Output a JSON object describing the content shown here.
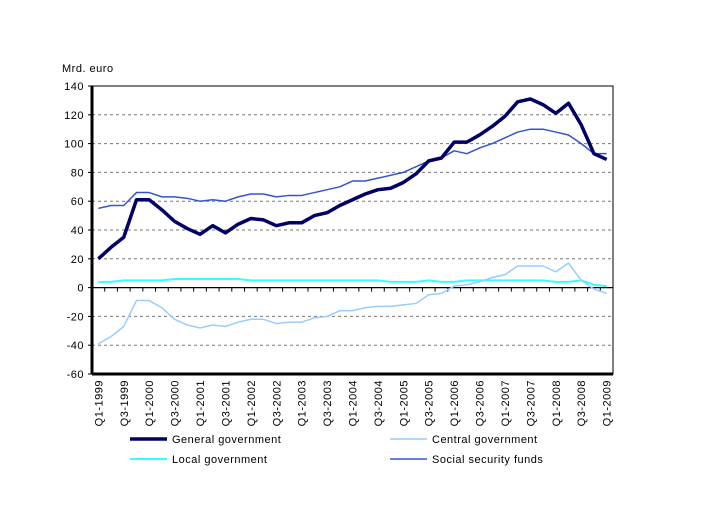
{
  "chart_data": {
    "type": "line",
    "ylabel": "Mrd. euro",
    "ylim": [
      -60,
      140
    ],
    "yticks": [
      -60,
      -40,
      -20,
      0,
      20,
      40,
      60,
      80,
      100,
      120,
      140
    ],
    "grid": true,
    "legend_position": "bottom",
    "x": [
      "Q1-1999",
      "Q2-1999",
      "Q3-1999",
      "Q4-1999",
      "Q1-2000",
      "Q2-2000",
      "Q3-2000",
      "Q4-2000",
      "Q1-2001",
      "Q2-2001",
      "Q3-2001",
      "Q4-2001",
      "Q1-2002",
      "Q2-2002",
      "Q3-2002",
      "Q4-2002",
      "Q1-2003",
      "Q2-2003",
      "Q3-2003",
      "Q4-2003",
      "Q1-2004",
      "Q2-2004",
      "Q3-2004",
      "Q4-2004",
      "Q1-2005",
      "Q2-2005",
      "Q3-2005",
      "Q4-2005",
      "Q1-2006",
      "Q2-2006",
      "Q3-2006",
      "Q4-2006",
      "Q1-2007",
      "Q2-2007",
      "Q3-2007",
      "Q4-2007",
      "Q1-2008",
      "Q2-2008",
      "Q3-2008",
      "Q4-2008",
      "Q1-2009"
    ],
    "xtick_labels": [
      "Q1-1999",
      "Q3-1999",
      "Q1-2000",
      "Q3-2000",
      "Q1-2001",
      "Q3-2001",
      "Q1-2002",
      "Q3-2002",
      "Q1-2003",
      "Q3-2003",
      "Q1-2004",
      "Q3-2004",
      "Q1-2005",
      "Q3-2005",
      "Q1-2006",
      "Q3-2006",
      "Q1-2007",
      "Q3-2007",
      "Q1-2008",
      "Q3-2008",
      "Q1-2009"
    ],
    "series": [
      {
        "name": "General government",
        "color": "#000066",
        "values": [
          20,
          28,
          35,
          61,
          61,
          54,
          46,
          41,
          37,
          43,
          38,
          44,
          48,
          47,
          43,
          45,
          45,
          50,
          52,
          57,
          61,
          65,
          68,
          69,
          73,
          79,
          88,
          90,
          101,
          101,
          106,
          112,
          119,
          129,
          131,
          127,
          121,
          128,
          113,
          93,
          89
        ]
      },
      {
        "name": "Central government",
        "color": "#99ccff",
        "values": [
          -39,
          -34,
          -27,
          -9,
          -9,
          -14,
          -22,
          -26,
          -28,
          -26,
          -27,
          -24,
          -22,
          -22,
          -25,
          -24,
          -24,
          -21,
          -20,
          -16,
          -16,
          -14,
          -13,
          -13,
          -12,
          -11,
          -5,
          -4,
          1,
          2,
          4,
          7,
          9,
          15,
          15,
          15,
          11,
          17,
          5,
          -1,
          -4
        ]
      },
      {
        "name": "Local government",
        "color": "#33ffff",
        "values": [
          4,
          4,
          5,
          5,
          5,
          5,
          6,
          6,
          6,
          6,
          6,
          6,
          5,
          5,
          5,
          5,
          5,
          5,
          5,
          5,
          5,
          5,
          5,
          4,
          4,
          4,
          5,
          4,
          4,
          5,
          5,
          5,
          5,
          5,
          5,
          5,
          4,
          4,
          5,
          2,
          1
        ]
      },
      {
        "name": "Social security funds",
        "color": "#3355cc",
        "values": [
          55,
          57,
          57,
          66,
          66,
          63,
          63,
          62,
          60,
          61,
          60,
          63,
          65,
          65,
          63,
          64,
          64,
          66,
          68,
          70,
          74,
          74,
          76,
          78,
          80,
          84,
          88,
          90,
          95,
          93,
          97,
          100,
          104,
          108,
          110,
          110,
          108,
          106,
          100,
          93,
          93
        ]
      }
    ]
  }
}
